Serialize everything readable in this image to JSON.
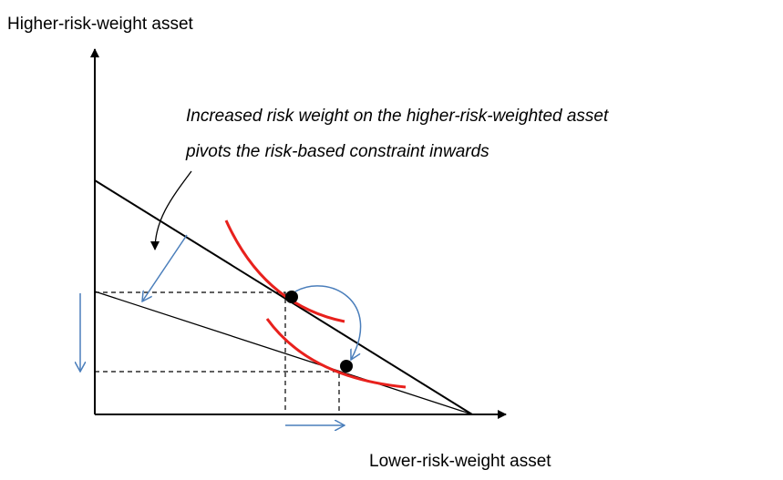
{
  "y_axis_label": "Higher-risk-weight asset",
  "x_axis_label": "Lower-risk-weight asset",
  "annotation": {
    "lines": [
      "Increased risk weight on the higher-risk-weighted asset",
      "pivots the risk-based constraint inwards"
    ]
  }
}
